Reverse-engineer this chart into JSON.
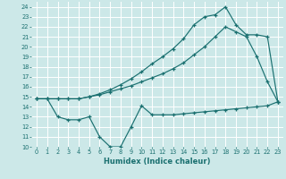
{
  "xlabel": "Humidex (Indice chaleur)",
  "bg_color": "#cce8e8",
  "grid_color": "#ffffff",
  "line_color": "#1a7070",
  "xlim": [
    -0.5,
    23.5
  ],
  "ylim": [
    10,
    24.5
  ],
  "xticks": [
    0,
    1,
    2,
    3,
    4,
    5,
    6,
    7,
    8,
    9,
    10,
    11,
    12,
    13,
    14,
    15,
    16,
    17,
    18,
    19,
    20,
    21,
    22,
    23
  ],
  "yticks": [
    10,
    11,
    12,
    13,
    14,
    15,
    16,
    17,
    18,
    19,
    20,
    21,
    22,
    23,
    24
  ],
  "line1_x": [
    0,
    1,
    2,
    3,
    4,
    5,
    6,
    7,
    8,
    9,
    10,
    11,
    12,
    13,
    14,
    15,
    16,
    17,
    18,
    19,
    20,
    21,
    22,
    23
  ],
  "line1_y": [
    14.8,
    14.8,
    14.8,
    14.8,
    14.8,
    15.0,
    15.2,
    15.5,
    15.8,
    16.1,
    16.5,
    16.9,
    17.3,
    17.8,
    18.4,
    19.2,
    20.0,
    21.0,
    22.0,
    21.5,
    21.0,
    19.0,
    16.5,
    14.5
  ],
  "line2_x": [
    0,
    1,
    2,
    3,
    4,
    5,
    6,
    7,
    8,
    9,
    10,
    11,
    12,
    13,
    14,
    15,
    16,
    17,
    18,
    19,
    20,
    21,
    22,
    23
  ],
  "line2_y": [
    14.8,
    14.8,
    13.0,
    12.7,
    12.7,
    13.0,
    11.0,
    10.0,
    10.0,
    12.0,
    14.1,
    13.2,
    13.2,
    13.2,
    13.3,
    13.4,
    13.5,
    13.6,
    13.7,
    13.8,
    13.9,
    14.0,
    14.1,
    14.5
  ],
  "line3_x": [
    0,
    1,
    2,
    3,
    4,
    5,
    6,
    7,
    8,
    9,
    10,
    11,
    12,
    13,
    14,
    15,
    16,
    17,
    18,
    19,
    20,
    21,
    22,
    23
  ],
  "line3_y": [
    14.8,
    14.8,
    14.8,
    14.8,
    14.8,
    15.0,
    15.3,
    15.7,
    16.2,
    16.8,
    17.5,
    18.3,
    19.0,
    19.8,
    20.8,
    22.2,
    23.0,
    23.2,
    24.0,
    22.2,
    21.2,
    21.2,
    21.0,
    14.5
  ]
}
